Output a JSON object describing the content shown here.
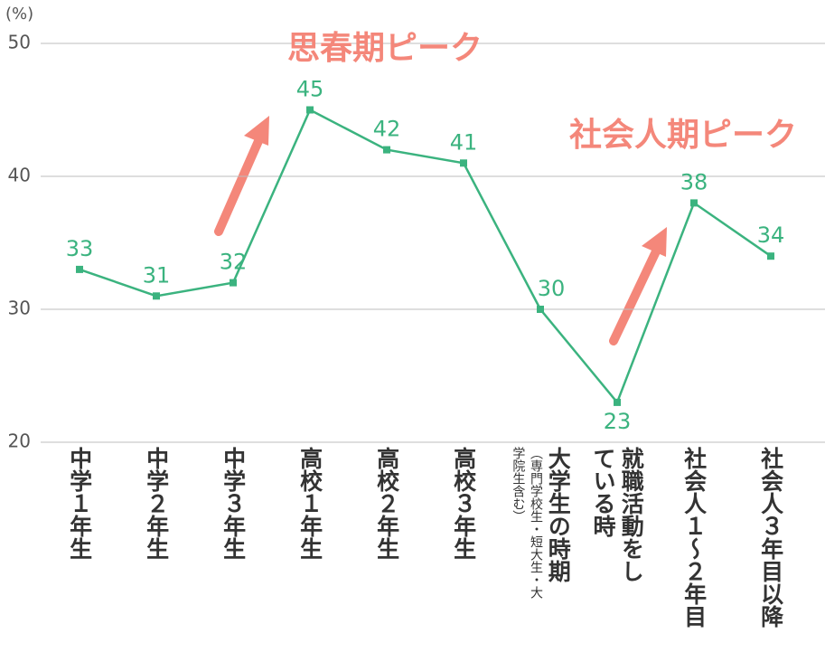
{
  "chart_data": {
    "type": "line",
    "y_unit": "(%)",
    "categories": [
      "中学１年生",
      "中学２年生",
      "中学３年生",
      "高校１年生",
      "高校２年生",
      "高校３年生",
      "大学生の時期",
      "就職活動をしている時",
      "社会人１～２年目",
      "社会人３年目以降"
    ],
    "category_notes": [
      null,
      null,
      null,
      null,
      null,
      null,
      "（専門学校生・短大生・大学院生含む）",
      null,
      null,
      null
    ],
    "series": [
      {
        "name": null,
        "color": "#3bb37f",
        "values": [
          33,
          31,
          32,
          45,
          42,
          41,
          30,
          23,
          38,
          34
        ]
      }
    ],
    "ylim": [
      20,
      50
    ],
    "yticks": [
      20,
      30,
      40,
      50
    ],
    "grid": true,
    "annotations": [
      "思春期ピーク",
      "社会人期ピーク"
    ]
  }
}
